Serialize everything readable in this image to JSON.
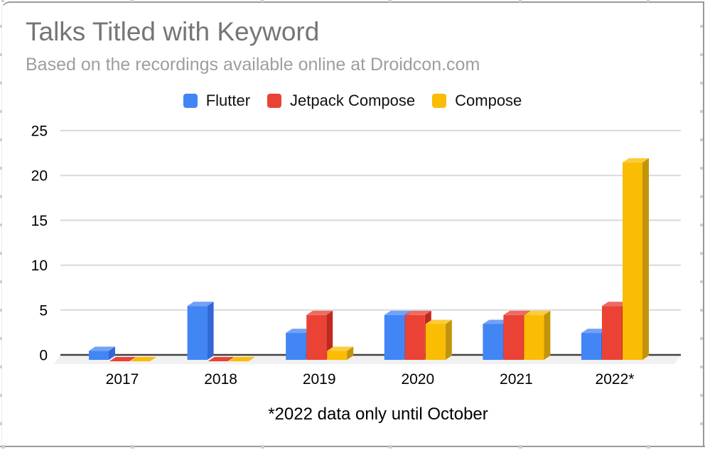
{
  "chart_data": {
    "type": "bar",
    "effect_3d": true,
    "title": "Talks Titled with Keyword",
    "subtitle": "Based on the recordings available online at Droidcon.com",
    "footnote": "*2022 data only until October",
    "categories": [
      "2017",
      "2018",
      "2019",
      "2020",
      "2021",
      "2022*"
    ],
    "series": [
      {
        "name": "Flutter",
        "color": "#4285F4",
        "color_top": "#71A2F6",
        "color_side": "#3367D6",
        "values": [
          1,
          6,
          3,
          5,
          4,
          3
        ]
      },
      {
        "name": "Jetpack Compose",
        "color": "#EA4335",
        "color_top": "#ED6C61",
        "color_side": "#C0291F",
        "values": [
          0,
          0,
          5,
          5,
          5,
          6
        ]
      },
      {
        "name": "Compose",
        "color": "#FBBC04",
        "color_top": "#FBCC3C",
        "color_side": "#C2940A",
        "values": [
          0,
          0,
          1,
          4,
          5,
          22
        ]
      }
    ],
    "y_ticks": [
      0,
      5,
      10,
      15,
      20,
      25
    ],
    "ylim": [
      0,
      25
    ],
    "xlabel": "",
    "ylabel": "",
    "grid": true,
    "legend_position": "top"
  },
  "colors": {
    "title_text": "#757575",
    "subtitle_text": "#9E9E9E",
    "axis_text": "#000000",
    "gridline": "#D9D9D9",
    "zero_axis_line": "#424242",
    "floor": "#F1F1F1",
    "frame_border": "#9A9A9A"
  }
}
